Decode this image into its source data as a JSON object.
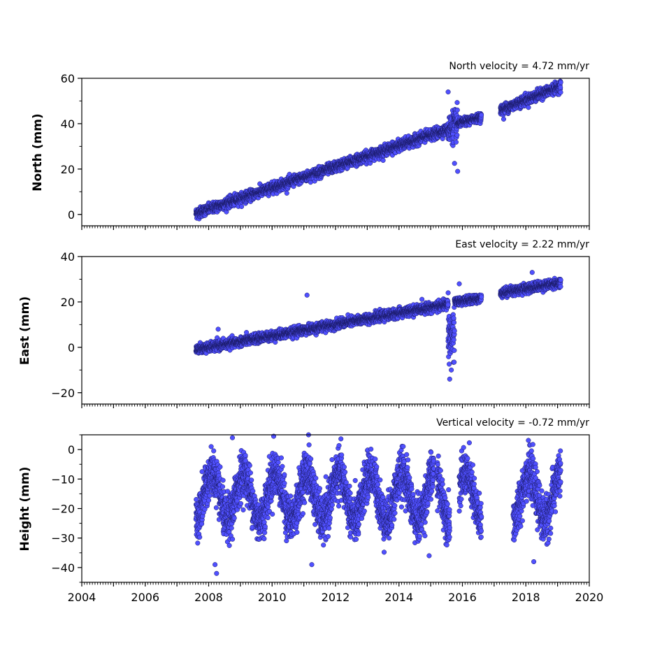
{
  "chart_data": [
    {
      "type": "scatter",
      "title": "North velocity = 4.72 mm/yr",
      "ylabel": "North (mm)",
      "xlim": [
        2004,
        2020
      ],
      "ylim": [
        -5,
        60
      ],
      "y_ticks": [
        0,
        20,
        40,
        60
      ],
      "y_tick_labels": [
        "0",
        "20",
        "40",
        "60"
      ],
      "x_tick_labels_shown": false,
      "marker_color": "#5050ff",
      "series": [
        {
          "kind": "daily GPS position time series",
          "segments": [
            {
              "start": 2007.6,
              "end": 2015.55,
              "y_start": 0.5,
              "y_end": 37.5,
              "scatter": 2.0
            },
            {
              "start": 2015.55,
              "end": 2015.85,
              "y_start": 37.5,
              "y_end": 40.0,
              "scatter": 6.0
            },
            {
              "start": 2015.85,
              "end": 2016.6,
              "y_start": 40.0,
              "y_end": 43.0,
              "scatter": 1.5
            },
            {
              "start": 2017.2,
              "end": 2019.1,
              "y_start": 46.0,
              "y_end": 56.5,
              "scatter": 2.0
            }
          ],
          "outliers": [
            {
              "x": 2015.55,
              "y": 54
            },
            {
              "x": 2015.85,
              "y": 19
            },
            {
              "x": 2015.75,
              "y": 22.5
            },
            {
              "x": 2017.3,
              "y": 42
            }
          ]
        }
      ]
    },
    {
      "type": "scatter",
      "title": "East velocity = 2.22 mm/yr",
      "ylabel": "East (mm)",
      "xlim": [
        2004,
        2020
      ],
      "ylim": [
        -25,
        40
      ],
      "y_ticks": [
        -20,
        0,
        20,
        40
      ],
      "y_tick_labels": [
        "−20",
        "0",
        "20",
        "40"
      ],
      "x_tick_labels_shown": false,
      "marker_color": "#5050ff",
      "series": [
        {
          "kind": "daily GPS position time series",
          "segments": [
            {
              "start": 2007.6,
              "end": 2015.55,
              "y_start": -1.0,
              "y_end": 19.0,
              "scatter": 1.8
            },
            {
              "start": 2015.55,
              "end": 2015.75,
              "y_start": 5.0,
              "y_end": 5.0,
              "scatter": 10.0
            },
            {
              "start": 2015.75,
              "end": 2016.6,
              "y_start": 20.0,
              "y_end": 21.5,
              "scatter": 1.5
            },
            {
              "start": 2017.2,
              "end": 2019.1,
              "y_start": 24.0,
              "y_end": 28.5,
              "scatter": 1.8
            }
          ],
          "outliers": [
            {
              "x": 2015.6,
              "y": -14
            },
            {
              "x": 2015.65,
              "y": -10
            },
            {
              "x": 2011.1,
              "y": 23
            },
            {
              "x": 2008.3,
              "y": 8
            },
            {
              "x": 2015.55,
              "y": 24
            },
            {
              "x": 2015.9,
              "y": 28
            },
            {
              "x": 2018.2,
              "y": 33
            }
          ]
        }
      ]
    },
    {
      "type": "scatter",
      "title": "Vertical velocity = -0.72 mm/yr",
      "ylabel": "Height (mm)",
      "xlabel": "",
      "xlim": [
        2004,
        2020
      ],
      "ylim": [
        -45,
        5
      ],
      "y_ticks": [
        0,
        -10,
        -20,
        -30,
        -40
      ],
      "y_tick_labels": [
        "0",
        "−10",
        "−20",
        "−30",
        "−40"
      ],
      "x_ticks": [
        2004,
        2006,
        2008,
        2010,
        2012,
        2014,
        2016,
        2018,
        2020
      ],
      "x_tick_labels": [
        "2004",
        "2006",
        "2008",
        "2010",
        "2012",
        "2014",
        "2016",
        "2018",
        "2020"
      ],
      "marker_color": "#5050ff",
      "series": [
        {
          "kind": "daily GPS position time series with annual signal",
          "mean": -16,
          "annual_amplitude": 8,
          "scatter": 5,
          "segments": [
            {
              "start": 2007.6,
              "end": 2015.1
            },
            {
              "start": 2015.2,
              "end": 2015.6
            },
            {
              "start": 2015.9,
              "end": 2016.6
            },
            {
              "start": 2017.6,
              "end": 2019.1
            }
          ],
          "outliers": [
            {
              "x": 2008.75,
              "y": 4
            },
            {
              "x": 2010.05,
              "y": 4.5
            },
            {
              "x": 2011.15,
              "y": 5
            },
            {
              "x": 2008.25,
              "y": -42
            },
            {
              "x": 2008.2,
              "y": -39
            },
            {
              "x": 2018.25,
              "y": -38
            },
            {
              "x": 2011.25,
              "y": -39
            },
            {
              "x": 2014.95,
              "y": -36
            }
          ]
        }
      ]
    }
  ]
}
